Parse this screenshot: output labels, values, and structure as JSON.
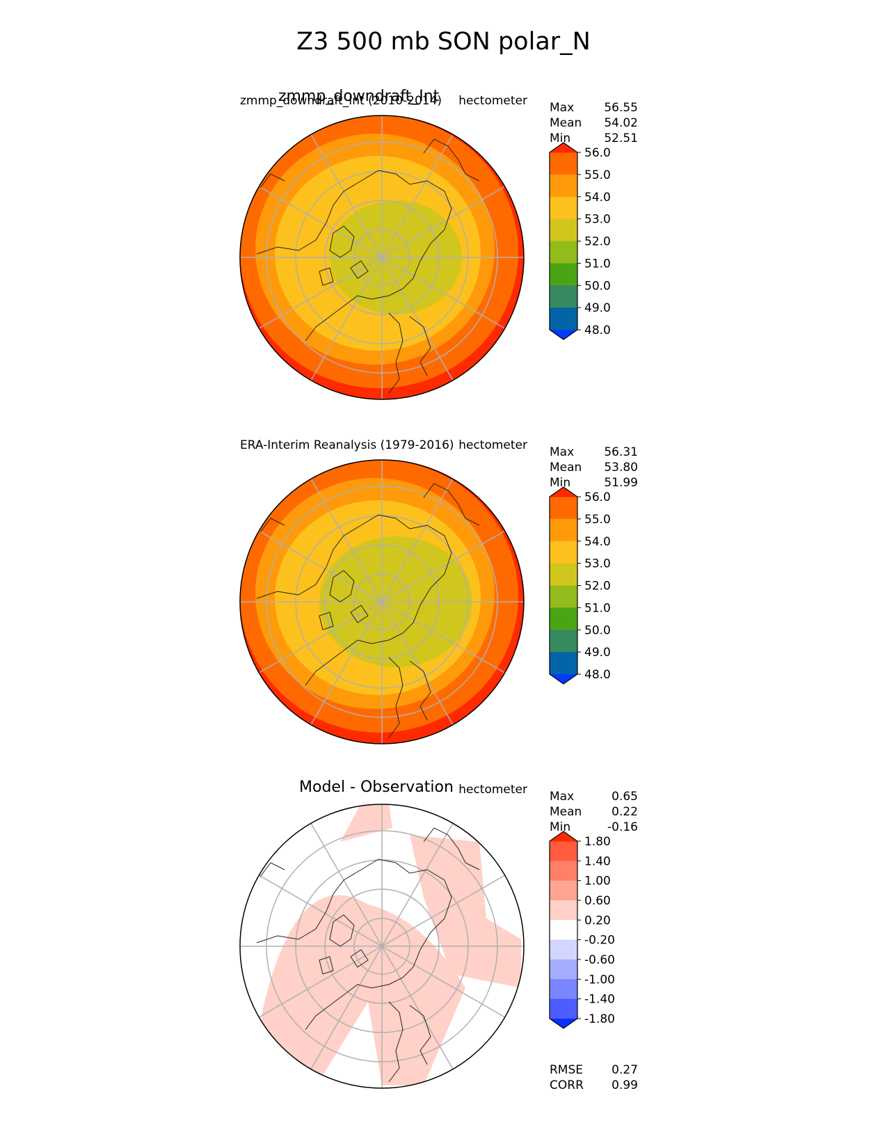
{
  "suptitle": "Z3 500 mb SON polar_N",
  "panels": [
    {
      "title": "zmmp_downdraft_Int",
      "subtitle_left": "zmmp_downdraft_Int (2010-2014)",
      "units": "hectometer",
      "stats": [
        {
          "label": "Max",
          "value": "56.55"
        },
        {
          "label": "Mean",
          "value": "54.02"
        },
        {
          "label": "Min",
          "value": "52.51"
        }
      ],
      "colorbar": {
        "ticks": [
          "56.0",
          "55.0",
          "54.0",
          "53.0",
          "52.0",
          "51.0",
          "50.0",
          "49.0",
          "48.0"
        ],
        "colors": [
          "#ff2a00",
          "#ff6a00",
          "#ff9a0a",
          "#fcc11d",
          "#d1c61e",
          "#93bb1b",
          "#4aa514",
          "#378a5f",
          "#0265a8",
          "#023aff"
        ]
      },
      "fills": [
        "#ff2a00",
        "#ff6a00",
        "#ff9a0a",
        "#fcc11d",
        "#d1c61e"
      ]
    },
    {
      "title": "",
      "subtitle_left": "ERA-Interim Reanalysis (1979-2016)",
      "units": "hectometer",
      "stats": [
        {
          "label": "Max",
          "value": "56.31"
        },
        {
          "label": "Mean",
          "value": "53.80"
        },
        {
          "label": "Min",
          "value": "51.99"
        }
      ],
      "colorbar": {
        "ticks": [
          "56.0",
          "55.0",
          "54.0",
          "53.0",
          "52.0",
          "51.0",
          "50.0",
          "49.0",
          "48.0"
        ],
        "colors": [
          "#ff2a00",
          "#ff6a00",
          "#ff9a0a",
          "#fcc11d",
          "#d1c61e",
          "#93bb1b",
          "#4aa514",
          "#378a5f",
          "#0265a8",
          "#023aff"
        ]
      },
      "fills": [
        "#ff2a00",
        "#ff6a00",
        "#ff9a0a",
        "#fcc11d",
        "#d1c61e"
      ]
    },
    {
      "title": "Model - Observation",
      "subtitle_left": "",
      "units": "hectometer",
      "stats": [
        {
          "label": "Max",
          "value": "0.65"
        },
        {
          "label": "Mean",
          "value": "0.22"
        },
        {
          "label": "Min",
          "value": "-0.16"
        }
      ],
      "colorbar": {
        "ticks": [
          "1.80",
          "1.40",
          "1.00",
          "0.60",
          "0.20",
          "-0.20",
          "-0.60",
          "-1.00",
          "-1.40",
          "-1.80"
        ],
        "colors": [
          "#ff2a00",
          "#ff5b3f",
          "#ff7f69",
          "#ffa592",
          "#ffd1c8",
          "#ffffff",
          "#d2d6ff",
          "#a5adff",
          "#7a86ff",
          "#4d5dff",
          "#0a30ff"
        ]
      },
      "fills": [
        "#ffffff",
        "#ffd1c8"
      ],
      "metrics": [
        {
          "label": "RMSE",
          "value": "0.27"
        },
        {
          "label": "CORR",
          "value": "0.99"
        }
      ]
    }
  ],
  "chart_data": [
    {
      "type": "heatmap",
      "title": "zmmp_downdraft_Int",
      "subtitle": "zmmp_downdraft_Int (2010-2014)",
      "units": "hectometer",
      "projection": "north polar stereographic",
      "stats": {
        "max": 56.55,
        "mean": 54.02,
        "min": 52.51
      },
      "levels": [
        48.0,
        49.0,
        50.0,
        51.0,
        52.0,
        53.0,
        54.0,
        55.0,
        56.0
      ],
      "extend": "both"
    },
    {
      "type": "heatmap",
      "title": "ERA-Interim Reanalysis (1979-2016)",
      "units": "hectometer",
      "projection": "north polar stereographic",
      "stats": {
        "max": 56.31,
        "mean": 53.8,
        "min": 51.99
      },
      "levels": [
        48.0,
        49.0,
        50.0,
        51.0,
        52.0,
        53.0,
        54.0,
        55.0,
        56.0
      ],
      "extend": "both"
    },
    {
      "type": "heatmap",
      "title": "Model - Observation",
      "units": "hectometer",
      "projection": "north polar stereographic",
      "stats": {
        "max": 0.65,
        "mean": 0.22,
        "min": -0.16
      },
      "levels": [
        -1.8,
        -1.4,
        -1.0,
        -0.6,
        -0.2,
        0.2,
        0.6,
        1.0,
        1.4,
        1.8
      ],
      "extend": "both",
      "rmse": 0.27,
      "corr": 0.99
    }
  ]
}
